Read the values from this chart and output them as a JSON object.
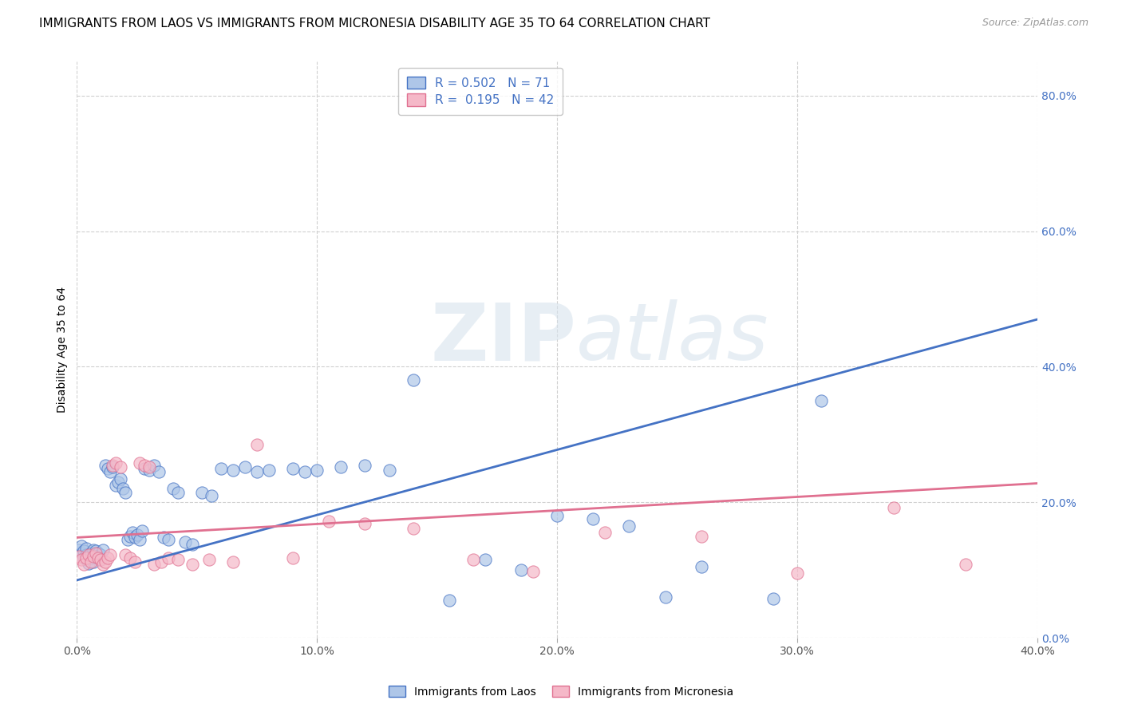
{
  "title": "IMMIGRANTS FROM LAOS VS IMMIGRANTS FROM MICRONESIA DISABILITY AGE 35 TO 64 CORRELATION CHART",
  "source": "Source: ZipAtlas.com",
  "ylabel": "Disability Age 35 to 64",
  "xlim": [
    0.0,
    0.4
  ],
  "ylim": [
    0.0,
    0.85
  ],
  "x_ticks": [
    0.0,
    0.1,
    0.2,
    0.3,
    0.4
  ],
  "x_tick_labels": [
    "0.0%",
    "10.0%",
    "20.0%",
    "30.0%",
    "40.0%"
  ],
  "y_ticks_right": [
    0.0,
    0.2,
    0.4,
    0.6,
    0.8
  ],
  "y_tick_labels_right": [
    "0.0%",
    "20.0%",
    "40.0%",
    "60.0%",
    "80.0%"
  ],
  "grid_color": "#d0d0d0",
  "background_color": "#ffffff",
  "laos_color": "#aec6e8",
  "laos_edge_color": "#4472c4",
  "laos_line_color": "#4472c4",
  "micronesia_color": "#f5b8c8",
  "micronesia_edge_color": "#e07090",
  "micronesia_line_color": "#e07090",
  "R_laos": 0.502,
  "N_laos": 71,
  "R_micronesia": 0.195,
  "N_micronesia": 42,
  "laos_scatter_x": [
    0.001,
    0.002,
    0.002,
    0.003,
    0.003,
    0.004,
    0.004,
    0.004,
    0.005,
    0.005,
    0.006,
    0.006,
    0.007,
    0.007,
    0.008,
    0.008,
    0.009,
    0.009,
    0.01,
    0.01,
    0.011,
    0.012,
    0.013,
    0.014,
    0.015,
    0.016,
    0.017,
    0.018,
    0.019,
    0.02,
    0.021,
    0.022,
    0.023,
    0.024,
    0.025,
    0.026,
    0.027,
    0.028,
    0.03,
    0.032,
    0.034,
    0.036,
    0.038,
    0.04,
    0.042,
    0.045,
    0.048,
    0.052,
    0.056,
    0.06,
    0.065,
    0.07,
    0.075,
    0.08,
    0.09,
    0.095,
    0.1,
    0.11,
    0.12,
    0.13,
    0.14,
    0.155,
    0.17,
    0.185,
    0.2,
    0.215,
    0.23,
    0.245,
    0.26,
    0.29,
    0.31
  ],
  "laos_scatter_y": [
    0.13,
    0.125,
    0.135,
    0.118,
    0.128,
    0.115,
    0.122,
    0.132,
    0.12,
    0.11,
    0.118,
    0.125,
    0.13,
    0.112,
    0.12,
    0.128,
    0.118,
    0.125,
    0.115,
    0.122,
    0.13,
    0.255,
    0.25,
    0.245,
    0.252,
    0.225,
    0.23,
    0.235,
    0.22,
    0.215,
    0.145,
    0.15,
    0.155,
    0.148,
    0.152,
    0.145,
    0.158,
    0.25,
    0.248,
    0.255,
    0.245,
    0.148,
    0.145,
    0.22,
    0.215,
    0.142,
    0.138,
    0.215,
    0.21,
    0.25,
    0.248,
    0.252,
    0.245,
    0.248,
    0.25,
    0.245,
    0.248,
    0.252,
    0.255,
    0.248,
    0.38,
    0.055,
    0.115,
    0.1,
    0.18,
    0.175,
    0.165,
    0.06,
    0.105,
    0.058,
    0.35
  ],
  "micronesia_scatter_x": [
    0.001,
    0.002,
    0.003,
    0.004,
    0.005,
    0.006,
    0.007,
    0.008,
    0.009,
    0.01,
    0.011,
    0.012,
    0.013,
    0.014,
    0.015,
    0.016,
    0.018,
    0.02,
    0.022,
    0.024,
    0.026,
    0.028,
    0.03,
    0.032,
    0.035,
    0.038,
    0.042,
    0.048,
    0.055,
    0.065,
    0.075,
    0.09,
    0.105,
    0.12,
    0.14,
    0.165,
    0.19,
    0.22,
    0.26,
    0.3,
    0.34,
    0.37
  ],
  "micronesia_scatter_y": [
    0.12,
    0.115,
    0.108,
    0.118,
    0.122,
    0.112,
    0.12,
    0.125,
    0.118,
    0.115,
    0.108,
    0.112,
    0.118,
    0.122,
    0.255,
    0.258,
    0.252,
    0.122,
    0.118,
    0.112,
    0.258,
    0.255,
    0.252,
    0.108,
    0.112,
    0.118,
    0.115,
    0.108,
    0.115,
    0.112,
    0.285,
    0.118,
    0.172,
    0.168,
    0.162,
    0.115,
    0.098,
    0.155,
    0.15,
    0.095,
    0.192,
    0.108
  ],
  "laos_line_x": [
    0.0,
    0.4
  ],
  "laos_line_y": [
    0.085,
    0.47
  ],
  "micronesia_line_x": [
    0.0,
    0.4
  ],
  "micronesia_line_y": [
    0.148,
    0.228
  ],
  "watermark_zip": "ZIP",
  "watermark_atlas": "atlas",
  "title_fontsize": 11,
  "label_fontsize": 10,
  "tick_fontsize": 10,
  "legend_fontsize": 11
}
